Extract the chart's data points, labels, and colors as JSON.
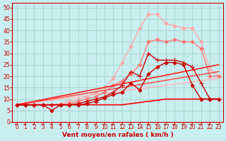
{
  "bg_color": "#c8eef0",
  "grid_color": "#aad8cc",
  "xlabel": "Vent moyen/en rafales ( km/h )",
  "xlim": [
    -0.5,
    23.5
  ],
  "ylim": [
    0,
    52
  ],
  "yticks": [
    0,
    5,
    10,
    15,
    20,
    25,
    30,
    35,
    40,
    45,
    50
  ],
  "xticks": [
    0,
    1,
    2,
    3,
    4,
    5,
    6,
    7,
    8,
    9,
    10,
    11,
    12,
    13,
    14,
    15,
    16,
    17,
    18,
    19,
    20,
    21,
    22,
    23
  ],
  "lines": [
    {
      "x": [
        0,
        1,
        2,
        3,
        4,
        5,
        6,
        7,
        8,
        9,
        10,
        11,
        12,
        13,
        14,
        15,
        16,
        17,
        18,
        19,
        20,
        21,
        22,
        23
      ],
      "y": [
        7.5,
        7.5,
        7.5,
        7.5,
        7.5,
        7.5,
        7.5,
        7.5,
        7.5,
        7.5,
        7.5,
        7.5,
        7.5,
        8,
        8.5,
        9,
        9.5,
        10,
        10,
        10,
        10,
        10,
        10,
        10
      ],
      "color": "#ff0000",
      "lw": 1.2,
      "marker": null,
      "zorder": 5
    },
    {
      "x": [
        0,
        1,
        2,
        3,
        4,
        5,
        6,
        7,
        8,
        9,
        10,
        11,
        12,
        13,
        14,
        15,
        16,
        17,
        18,
        19,
        20,
        21,
        22,
        23
      ],
      "y": [
        7.5,
        7.5,
        7.5,
        7.5,
        5,
        7.5,
        7.5,
        7.5,
        8,
        9,
        10.5,
        12,
        13,
        17,
        14,
        21,
        24,
        26,
        26,
        25,
        16,
        10,
        10,
        10
      ],
      "color": "#cc0000",
      "lw": 1.0,
      "marker": "D",
      "markersize": 2.5,
      "zorder": 6
    },
    {
      "x": [
        0,
        1,
        2,
        3,
        4,
        5,
        6,
        7,
        8,
        9,
        10,
        11,
        12,
        13,
        14,
        15,
        16,
        17,
        18,
        19,
        20,
        21,
        22,
        23
      ],
      "y": [
        7.5,
        7.5,
        7.5,
        7.5,
        7.5,
        7.5,
        7.5,
        8,
        9,
        10,
        11,
        13,
        16,
        22,
        20,
        30,
        27,
        27,
        27,
        26,
        24,
        17,
        10,
        10
      ],
      "color": "#cc0000",
      "lw": 1.0,
      "marker": "+",
      "markersize": 4,
      "zorder": 6
    },
    {
      "x": [
        0,
        1,
        2,
        3,
        4,
        5,
        6,
        7,
        8,
        9,
        10,
        11,
        12,
        13,
        14,
        15,
        16,
        17,
        18,
        19,
        20,
        21,
        22,
        23
      ],
      "y": [
        7.5,
        7.5,
        7.5,
        7.5,
        7.5,
        7.5,
        8,
        9,
        10,
        11,
        13,
        16,
        18,
        21,
        25,
        35,
        36,
        35,
        36,
        35,
        35,
        32,
        20,
        20
      ],
      "color": "#ff7777",
      "lw": 1.0,
      "marker": "D",
      "markersize": 2.5,
      "zorder": 3
    },
    {
      "x": [
        0,
        1,
        2,
        3,
        4,
        5,
        6,
        7,
        8,
        9,
        10,
        11,
        12,
        13,
        14,
        15,
        16,
        17,
        18,
        19,
        20,
        21,
        22,
        23
      ],
      "y": [
        7.5,
        7.5,
        7.5,
        7.5,
        7.5,
        8,
        9,
        10,
        11,
        13,
        15,
        19,
        26,
        33,
        41,
        47,
        47,
        43,
        42,
        41,
        41,
        35,
        23,
        20
      ],
      "color": "#ffaaaa",
      "lw": 1.0,
      "marker": "D",
      "markersize": 2.5,
      "zorder": 2
    },
    {
      "x": [
        0,
        23
      ],
      "y": [
        7.5,
        25
      ],
      "color": "#ff2222",
      "lw": 1.2,
      "marker": null,
      "zorder": 4
    },
    {
      "x": [
        0,
        23
      ],
      "y": [
        7.5,
        22
      ],
      "color": "#ff5555",
      "lw": 1.2,
      "marker": null,
      "zorder": 3
    },
    {
      "x": [
        0,
        23
      ],
      "y": [
        7.5,
        19
      ],
      "color": "#ffbbbb",
      "lw": 1.2,
      "marker": null,
      "zorder": 2
    }
  ],
  "arrow_color": "#cc0000",
  "axis_label_color": "#cc0000",
  "tick_color": "#cc0000",
  "tick_fontsize": 5.5,
  "xlabel_fontsize": 6.5
}
